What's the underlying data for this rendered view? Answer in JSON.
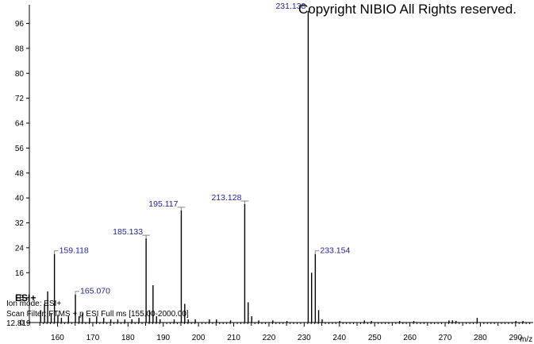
{
  "copyright": "Copyright NIBIO All Rights reserved.",
  "scan_info": {
    "esi_label": "ESI+",
    "ion_mode": "Ion mode: ESI+",
    "scan_filter": "Scan Filter: FTMS + p ESI Full ms [155.00-2000.00]",
    "retention": "12.819"
  },
  "colors": {
    "label": "#1f1f99",
    "stick": "#000000",
    "axis": "#000000"
  },
  "chart_data": {
    "type": "bar",
    "xlabel": "m/z",
    "ylabel": "",
    "xlim": [
      152,
      295
    ],
    "ylim": [
      0,
      102
    ],
    "x_ticks": [
      160,
      170,
      180,
      190,
      200,
      210,
      220,
      230,
      240,
      250,
      260,
      270,
      280,
      290
    ],
    "y_ticks": [
      0,
      8,
      16,
      24,
      32,
      40,
      48,
      56,
      64,
      72,
      80,
      88,
      96
    ],
    "peaks": [
      {
        "mz": 155.2,
        "intensity": 4
      },
      {
        "mz": 156.3,
        "intensity": 6
      },
      {
        "mz": 157.2,
        "intensity": 10
      },
      {
        "mz": 158.2,
        "intensity": 3
      },
      {
        "mz": 159.118,
        "intensity": 22,
        "label": "159.118"
      },
      {
        "mz": 160.1,
        "intensity": 2.5
      },
      {
        "mz": 161.1,
        "intensity": 1.5
      },
      {
        "mz": 163.1,
        "intensity": 2
      },
      {
        "mz": 165.07,
        "intensity": 9,
        "label": "165.070"
      },
      {
        "mz": 166.1,
        "intensity": 2
      },
      {
        "mz": 167.1,
        "intensity": 3
      },
      {
        "mz": 169.1,
        "intensity": 1.5
      },
      {
        "mz": 171.1,
        "intensity": 2
      },
      {
        "mz": 173.1,
        "intensity": 1.5
      },
      {
        "mz": 175.1,
        "intensity": 1
      },
      {
        "mz": 177.1,
        "intensity": 1
      },
      {
        "mz": 179.1,
        "intensity": 1
      },
      {
        "mz": 181.1,
        "intensity": 1
      },
      {
        "mz": 183.1,
        "intensity": 1.5
      },
      {
        "mz": 185.133,
        "intensity": 27,
        "label": "185.133"
      },
      {
        "mz": 186.1,
        "intensity": 4
      },
      {
        "mz": 187.1,
        "intensity": 12
      },
      {
        "mz": 188.1,
        "intensity": 2
      },
      {
        "mz": 189.1,
        "intensity": 1
      },
      {
        "mz": 193.1,
        "intensity": 1
      },
      {
        "mz": 195.117,
        "intensity": 36,
        "label": "195.117"
      },
      {
        "mz": 196.1,
        "intensity": 6
      },
      {
        "mz": 197.1,
        "intensity": 1
      },
      {
        "mz": 199.1,
        "intensity": 1
      },
      {
        "mz": 203.1,
        "intensity": 1
      },
      {
        "mz": 205.1,
        "intensity": 1
      },
      {
        "mz": 209.1,
        "intensity": 0.7
      },
      {
        "mz": 213.128,
        "intensity": 38,
        "label": "213.128"
      },
      {
        "mz": 214.1,
        "intensity": 6.5
      },
      {
        "mz": 215.1,
        "intensity": 2
      },
      {
        "mz": 217.1,
        "intensity": 0.7
      },
      {
        "mz": 221.1,
        "intensity": 0.7
      },
      {
        "mz": 225.1,
        "intensity": 0.5
      },
      {
        "mz": 231.138,
        "intensity": 100,
        "label": "231.138"
      },
      {
        "mz": 232.1,
        "intensity": 16
      },
      {
        "mz": 233.154,
        "intensity": 22,
        "label": "233.154"
      },
      {
        "mz": 234.1,
        "intensity": 4
      },
      {
        "mz": 235.1,
        "intensity": 1
      },
      {
        "mz": 240.1,
        "intensity": 0.5
      },
      {
        "mz": 247.1,
        "intensity": 0.7
      },
      {
        "mz": 249.1,
        "intensity": 0.5
      },
      {
        "mz": 257.1,
        "intensity": 0.5
      },
      {
        "mz": 261.1,
        "intensity": 0.5
      },
      {
        "mz": 271.1,
        "intensity": 0.7
      },
      {
        "mz": 272.1,
        "intensity": 0.7
      },
      {
        "mz": 273.1,
        "intensity": 0.5
      },
      {
        "mz": 279.1,
        "intensity": 1.5
      },
      {
        "mz": 290.1,
        "intensity": 0.5
      },
      {
        "mz": 292.1,
        "intensity": 0.5
      }
    ]
  }
}
